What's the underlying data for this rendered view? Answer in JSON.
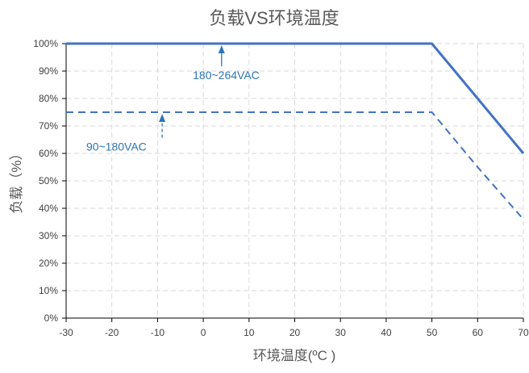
{
  "chart_data": {
    "type": "line",
    "title": "负载VS环境温度",
    "xlabel": "环境温度(ºC )",
    "ylabel": "负载（%）",
    "x_ticks": [
      "-30",
      "-20",
      "-10",
      "0",
      "10",
      "20",
      "30",
      "40",
      "50",
      "60",
      "70"
    ],
    "y_ticks": [
      "0%",
      "10%",
      "20%",
      "30%",
      "40%",
      "50%",
      "60%",
      "70%",
      "80%",
      "90%",
      "100%"
    ],
    "xlim": [
      -30,
      70
    ],
    "ylim": [
      0,
      100
    ],
    "grid": true,
    "series": [
      {
        "name": "180~264VAC",
        "style": "solid",
        "color": "#4472c4",
        "points": [
          [
            -30,
            100
          ],
          [
            50,
            100
          ],
          [
            60,
            80
          ],
          [
            70,
            60
          ]
        ]
      },
      {
        "name": "90~180VAC",
        "style": "dashed",
        "color": "#4472c4",
        "points": [
          [
            -30,
            75
          ],
          [
            50,
            75
          ],
          [
            60,
            55
          ],
          [
            70,
            36
          ]
        ]
      }
    ],
    "annotations": [
      {
        "text": "180~264VAC",
        "color": "#2e75b6",
        "arrow_to": [
          4,
          100
        ],
        "label_at": [
          5,
          87
        ]
      },
      {
        "text": "90~180VAC",
        "color": "#2e75b6",
        "arrow_to": [
          -9,
          75
        ],
        "label_at": [
          -19,
          61
        ]
      }
    ]
  }
}
